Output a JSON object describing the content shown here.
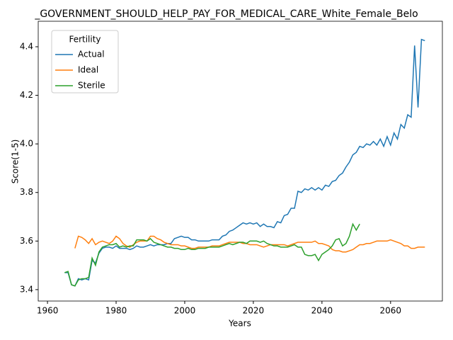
{
  "chart_data": {
    "type": "line",
    "title": "_GOVERNMENT_SHOULD_HELP_PAY_FOR_MEDICAL_CARE_White_Female_Belo",
    "xlabel": "Years",
    "ylabel": "Score(1-5)",
    "legend_title": "Fertility",
    "legend": "upper left",
    "xlim": [
      1957.3,
      2075.1
    ],
    "ylim": [
      3.353,
      4.505
    ],
    "xticks": [
      1960,
      1980,
      2000,
      2020,
      2040,
      2060
    ],
    "yticks": [
      3.4,
      3.6,
      3.8,
      {
        "value": 4,
        "label": "4.0"
      },
      4.2,
      4.4
    ],
    "x": [
      1965,
      1966,
      1967,
      1968,
      1969,
      1970,
      1971,
      1972,
      1973,
      1974,
      1975,
      1976,
      1977,
      1978,
      1979,
      1980,
      1981,
      1982,
      1983,
      1984,
      1985,
      1986,
      1987,
      1988,
      1989,
      1990,
      1991,
      1992,
      1993,
      1994,
      1995,
      1996,
      1997,
      1998,
      1999,
      2000,
      2001,
      2002,
      2003,
      2004,
      2005,
      2006,
      2007,
      2008,
      2009,
      2010,
      2011,
      2012,
      2013,
      2014,
      2015,
      2016,
      2017,
      2018,
      2019,
      2020,
      2021,
      2022,
      2023,
      2024,
      2025,
      2026,
      2027,
      2028,
      2029,
      2030,
      2031,
      2032,
      2033,
      2034,
      2035,
      2036,
      2037,
      2038,
      2039,
      2040,
      2041,
      2042,
      2043,
      2044,
      2045,
      2046,
      2047,
      2048,
      2049,
      2050,
      2051,
      2052,
      2053,
      2054,
      2055,
      2056,
      2057,
      2058,
      2059,
      2060,
      2061,
      2062,
      2063,
      2064,
      2065,
      2066,
      2067,
      2068,
      2069,
      2070
    ],
    "series": [
      {
        "name": "Actual",
        "color": "#1f77b4",
        "values": [
          3.47,
          3.47,
          3.42,
          3.415,
          3.445,
          3.44,
          3.445,
          3.44,
          3.52,
          3.51,
          3.55,
          3.57,
          3.575,
          3.575,
          3.57,
          3.58,
          3.57,
          3.57,
          3.57,
          3.565,
          3.57,
          3.58,
          3.575,
          3.575,
          3.58,
          3.585,
          3.58,
          3.585,
          3.585,
          3.585,
          3.59,
          3.59,
          3.61,
          3.615,
          3.62,
          3.615,
          3.615,
          3.605,
          3.605,
          3.6,
          3.6,
          3.6,
          3.6,
          3.605,
          3.605,
          3.605,
          3.62,
          3.625,
          3.64,
          3.645,
          3.655,
          3.665,
          3.675,
          3.67,
          3.675,
          3.67,
          3.675,
          3.66,
          3.67,
          3.66,
          3.66,
          3.655,
          3.68,
          3.675,
          3.705,
          3.71,
          3.735,
          3.735,
          3.805,
          3.8,
          3.815,
          3.81,
          3.82,
          3.81,
          3.82,
          3.81,
          3.83,
          3.825,
          3.845,
          3.85,
          3.87,
          3.88,
          3.905,
          3.925,
          3.955,
          3.965,
          3.99,
          3.985,
          4.0,
          3.995,
          4.01,
          3.995,
          4.02,
          3.99,
          4.03,
          3.995,
          4.045,
          4.02,
          4.08,
          4.065,
          4.12,
          4.11,
          4.405,
          4.15,
          4.43,
          4.425
        ]
      },
      {
        "name": "Ideal",
        "color": "#ff7f0e",
        "values": [
          null,
          null,
          null,
          3.57,
          3.62,
          3.615,
          3.605,
          3.59,
          3.61,
          3.585,
          3.595,
          3.6,
          3.595,
          3.59,
          3.6,
          3.62,
          3.61,
          3.59,
          3.58,
          3.575,
          3.585,
          3.595,
          3.6,
          3.6,
          3.6,
          3.62,
          3.62,
          3.61,
          3.605,
          3.595,
          3.59,
          3.585,
          3.585,
          3.585,
          3.58,
          3.58,
          3.575,
          3.57,
          3.57,
          3.575,
          3.575,
          3.575,
          3.575,
          3.58,
          3.58,
          3.58,
          3.585,
          3.59,
          3.595,
          3.595,
          3.595,
          3.595,
          3.59,
          3.59,
          3.585,
          3.585,
          3.585,
          3.58,
          3.575,
          3.58,
          3.585,
          3.585,
          3.585,
          3.585,
          3.585,
          3.58,
          3.585,
          3.59,
          3.595,
          3.595,
          3.595,
          3.595,
          3.595,
          3.6,
          3.59,
          3.59,
          3.585,
          3.58,
          3.565,
          3.56,
          3.56,
          3.555,
          3.555,
          3.56,
          3.565,
          3.575,
          3.585,
          3.585,
          3.59,
          3.59,
          3.595,
          3.6,
          3.6,
          3.6,
          3.6,
          3.605,
          3.6,
          3.595,
          3.59,
          3.58,
          3.58,
          3.57,
          3.57,
          3.575,
          3.575,
          3.575
        ]
      },
      {
        "name": "Sterile",
        "color": "#2ca02c",
        "values": [
          3.47,
          3.475,
          3.42,
          3.415,
          3.44,
          3.445,
          3.445,
          3.45,
          3.53,
          3.5,
          3.555,
          3.575,
          3.58,
          3.585,
          3.585,
          3.59,
          3.575,
          3.58,
          3.575,
          3.58,
          3.58,
          3.605,
          3.605,
          3.605,
          3.6,
          3.61,
          3.595,
          3.59,
          3.585,
          3.58,
          3.575,
          3.575,
          3.57,
          3.57,
          3.565,
          3.565,
          3.57,
          3.565,
          3.565,
          3.57,
          3.57,
          3.57,
          3.575,
          3.575,
          3.575,
          3.575,
          3.58,
          3.585,
          3.59,
          3.585,
          3.59,
          3.595,
          3.595,
          3.59,
          3.6,
          3.6,
          3.6,
          3.595,
          3.6,
          3.59,
          3.585,
          3.58,
          3.58,
          3.575,
          3.575,
          3.575,
          3.58,
          3.585,
          3.575,
          3.575,
          3.545,
          3.54,
          3.54,
          3.545,
          3.52,
          3.545,
          3.555,
          3.565,
          3.58,
          3.605,
          3.61,
          3.58,
          3.59,
          3.62,
          3.67,
          3.645,
          3.67,
          null,
          null,
          null,
          null,
          null,
          null,
          null,
          null,
          null,
          null,
          null,
          null,
          null,
          null,
          null,
          null,
          null,
          null,
          null
        ]
      }
    ]
  }
}
